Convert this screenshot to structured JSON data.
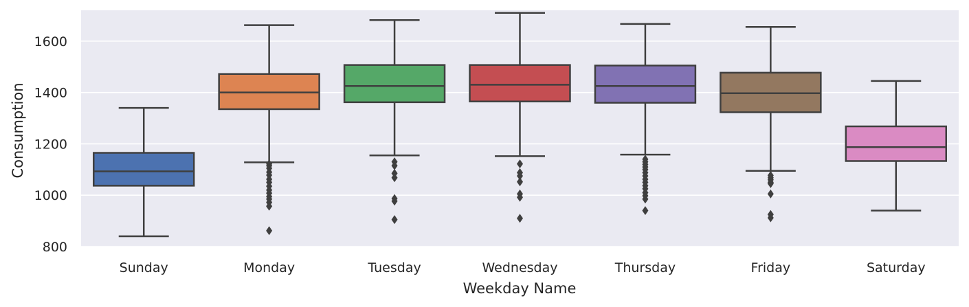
{
  "chart_data": {
    "type": "box",
    "xlabel": "Weekday Name",
    "ylabel": "Consumption",
    "ylim": [
      800,
      1720
    ],
    "yticks": [
      800,
      1000,
      1200,
      1400,
      1600
    ],
    "grid": true,
    "categories": [
      "Sunday",
      "Monday",
      "Tuesday",
      "Wednesday",
      "Thursday",
      "Friday",
      "Saturday"
    ],
    "boxes": [
      {
        "category": "Sunday",
        "color": "#4c72b0",
        "whisker_low": 840,
        "q1": 1037,
        "median": 1093,
        "q3": 1165,
        "whisker_high": 1340,
        "outliers": []
      },
      {
        "category": "Monday",
        "color": "#dd8452",
        "whisker_low": 1128,
        "q1": 1335,
        "median": 1400,
        "q3": 1472,
        "whisker_high": 1662,
        "outliers": [
          1122,
          1115,
          1105,
          1090,
          1078,
          1062,
          1050,
          1035,
          1020,
          1008,
          995,
          985,
          972,
          957,
          862
        ]
      },
      {
        "category": "Tuesday",
        "color": "#55a868",
        "whisker_low": 1155,
        "q1": 1362,
        "median": 1425,
        "q3": 1507,
        "whisker_high": 1682,
        "outliers": [
          1130,
          1115,
          1085,
          1068,
          987,
          977,
          905
        ]
      },
      {
        "category": "Wednesday",
        "color": "#c44e52",
        "whisker_low": 1152,
        "q1": 1365,
        "median": 1430,
        "q3": 1507,
        "whisker_high": 1710,
        "outliers": [
          1122,
          1088,
          1075,
          1052,
          1005,
          992,
          910
        ]
      },
      {
        "category": "Thursday",
        "color": "#8172b3",
        "whisker_low": 1158,
        "q1": 1360,
        "median": 1425,
        "q3": 1505,
        "whisker_high": 1667,
        "outliers": [
          1140,
          1130,
          1120,
          1110,
          1100,
          1088,
          1075,
          1062,
          1050,
          1037,
          1025,
          1010,
          998,
          985,
          940
        ]
      },
      {
        "category": "Friday",
        "color": "#937860",
        "whisker_low": 1095,
        "q1": 1323,
        "median": 1397,
        "q3": 1477,
        "whisker_high": 1655,
        "outliers": [
          1077,
          1068,
          1060,
          1050,
          1045,
          1005,
          925,
          912
        ]
      },
      {
        "category": "Saturday",
        "color": "#da8bc3",
        "whisker_low": 940,
        "q1": 1133,
        "median": 1187,
        "q3": 1268,
        "whisker_high": 1445,
        "outliers": []
      }
    ]
  }
}
